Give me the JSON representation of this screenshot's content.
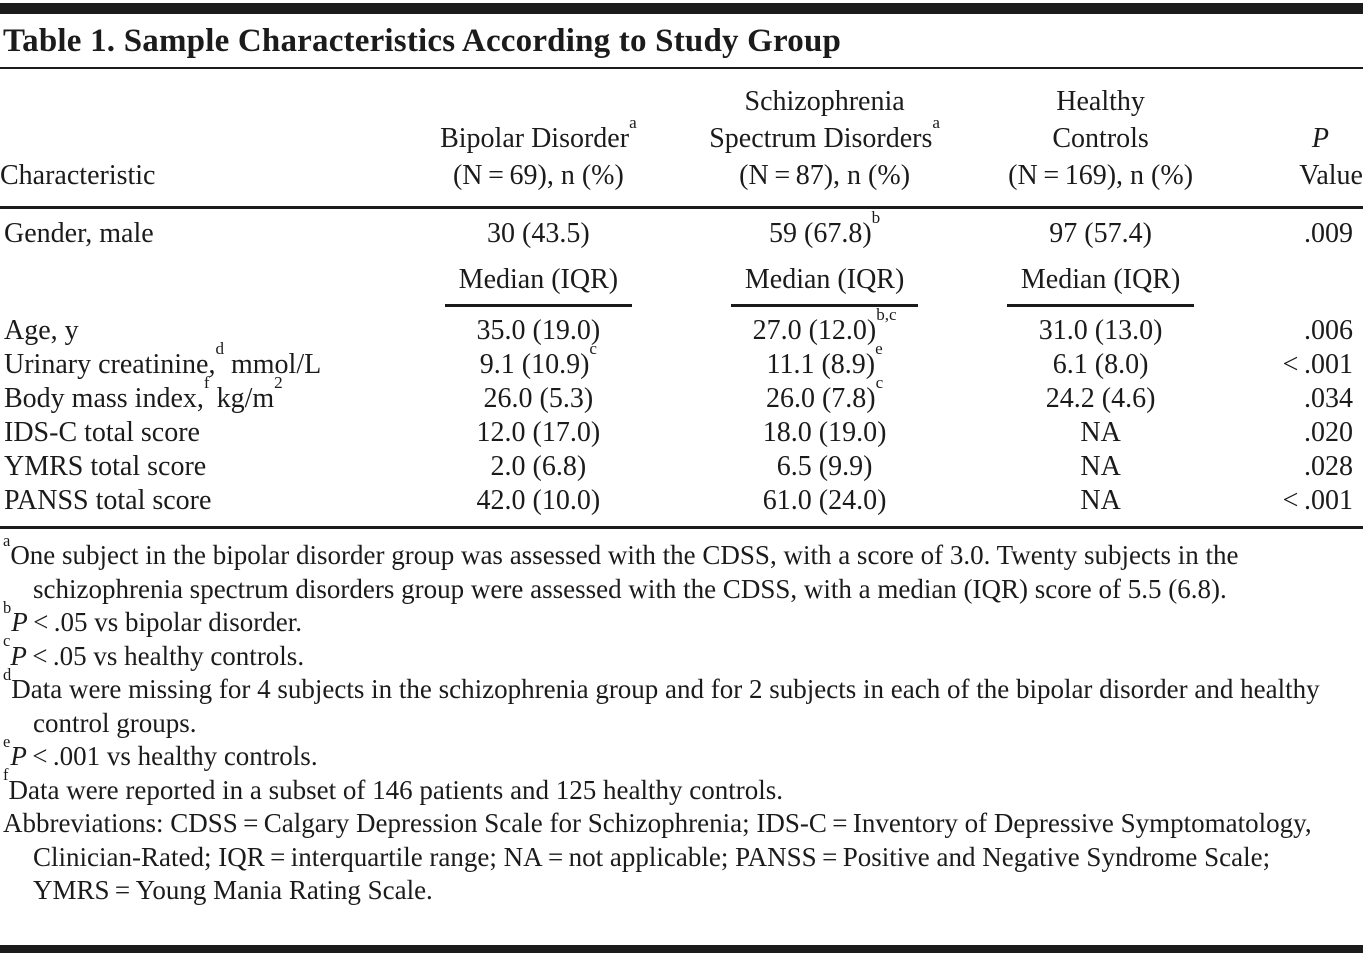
{
  "title": "Table 1. Sample Characteristics According to Study Group",
  "colors": {
    "text": "#1b1b1b",
    "rule": "#1b1b1b",
    "background": "#ffffff"
  },
  "table": {
    "header": {
      "characteristic": "Characteristic",
      "bipolar": {
        "line1": "Bipolar Disorder^{a}",
        "line2": "(N = 69), n (%)"
      },
      "schizophrenia": {
        "line1": "Schizophrenia",
        "line2": "Spectrum Disorders^{a}",
        "line3": "(N = 87), n (%)"
      },
      "healthy": {
        "line1": "Healthy",
        "line2": "Controls",
        "line3": "(N = 169), n (%)"
      },
      "p": {
        "line1": "~{P}",
        "line2": "Value"
      }
    },
    "median_label": "Median (IQR)",
    "rows": {
      "gender": {
        "label": "Gender, male",
        "bipolar": "30 (43.5)",
        "schizophrenia": "59 (67.8)^{b}",
        "healthy": "97 (57.4)",
        "p": ".009"
      }
    },
    "measures": [
      {
        "label": "Age, y",
        "bipolar": "35.0 (19.0)",
        "schizophrenia": "27.0 (12.0)^{b,c}",
        "healthy": "31.0 (13.0)",
        "p": ".006"
      },
      {
        "label": "Urinary creatinine,^{d} mmol/L",
        "bipolar": "9.1 (10.9)^{c}",
        "schizophrenia": "11.1 (8.9)^{e}",
        "healthy": "6.1 (8.0)",
        "p": "< .001"
      },
      {
        "label": "Body mass index,^{f} kg/m^{2}",
        "bipolar": "26.0 (5.3)",
        "schizophrenia": "26.0 (7.8)^{c}",
        "healthy": "24.2 (4.6)",
        "p": ".034"
      },
      {
        "label": "IDS-C total score",
        "bipolar": "12.0 (17.0)",
        "schizophrenia": "18.0 (19.0)",
        "healthy": "NA",
        "p": ".020"
      },
      {
        "label": "YMRS total score",
        "bipolar": "2.0 (6.8)",
        "schizophrenia": "6.5 (9.9)",
        "healthy": "NA",
        "p": ".028"
      },
      {
        "label": "PANSS total score",
        "bipolar": "42.0 (10.0)",
        "schizophrenia": "61.0 (24.0)",
        "healthy": "NA",
        "p": "< .001"
      }
    ]
  },
  "footnotes": [
    {
      "marker": "a",
      "text": "One subject in the bipolar disorder group was assessed with the CDSS, with a score of 3.0. Twenty subjects in the schizophrenia spectrum disorders group were assessed with the CDSS, with a median (IQR) score of 5.5 (6.8)."
    },
    {
      "marker": "b",
      "text": "~{P} < .05 vs bipolar disorder."
    },
    {
      "marker": "c",
      "text": "~{P} < .05 vs healthy controls."
    },
    {
      "marker": "d",
      "text": "Data were missing for 4 subjects in the schizophrenia group and for 2 subjects in each of the bipolar disorder and healthy control groups."
    },
    {
      "marker": "e",
      "text": "~{P} < .001 vs healthy controls."
    },
    {
      "marker": "f",
      "text": "Data were reported in a subset of 146 patients and 125 healthy controls."
    },
    {
      "marker": "",
      "text": "Abbreviations: CDSS = Calgary Depression Scale for Schizophrenia; IDS-C = Inventory of Depressive Symptomatology, Clinician-Rated; IQR = interquartile range; NA = not applicable; PANSS = Positive and Negative Syndrome Scale; YMRS = Young Mania Rating Scale."
    }
  ]
}
